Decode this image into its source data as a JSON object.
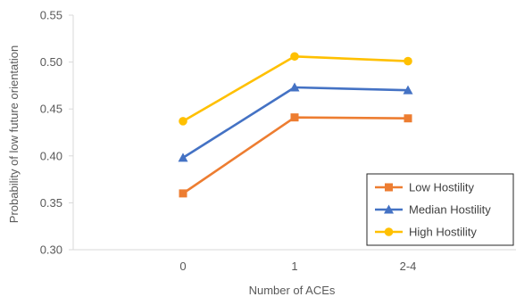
{
  "chart_data": {
    "type": "line",
    "title": "",
    "xlabel": "Number of ACEs",
    "ylabel": "Probability of low future orientation",
    "categories": [
      "0",
      "1",
      "2-4"
    ],
    "ylim": [
      0.3,
      0.55
    ],
    "yticks": [
      0.3,
      0.35,
      0.4,
      0.45,
      0.5,
      0.55
    ],
    "ytick_labels": [
      "0.30",
      "0.35",
      "0.40",
      "0.45",
      "0.50",
      "0.55"
    ],
    "grid": false,
    "legend_position": "bottom-right",
    "series": [
      {
        "name": "Low Hostility",
        "values": [
          0.36,
          0.441,
          0.44
        ],
        "color": "#ED7D31",
        "marker": "square"
      },
      {
        "name": "Median Hostility",
        "values": [
          0.398,
          0.473,
          0.47
        ],
        "color": "#4472C4",
        "marker": "triangle"
      },
      {
        "name": "High Hostility",
        "values": [
          0.437,
          0.506,
          0.501
        ],
        "color": "#FFC000",
        "marker": "circle"
      }
    ]
  }
}
